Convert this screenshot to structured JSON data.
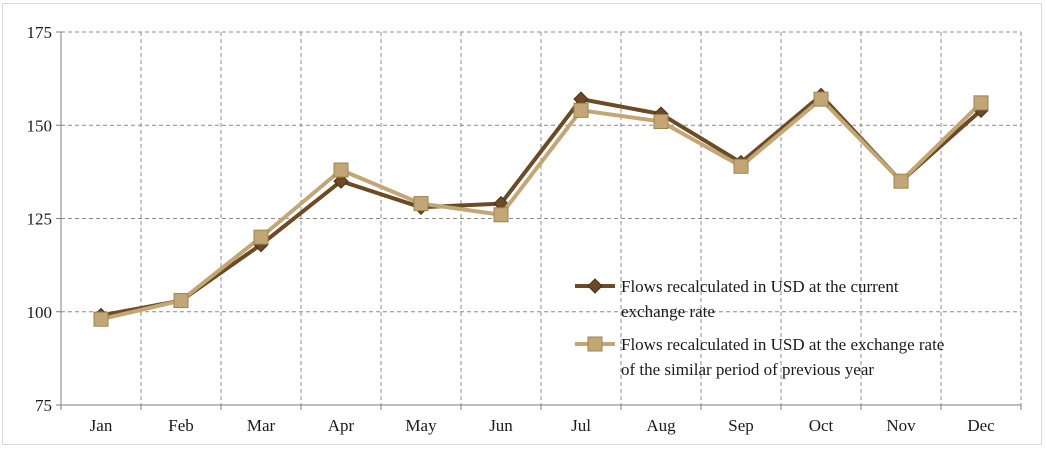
{
  "chart_data": {
    "type": "line",
    "title": "",
    "xlabel": "",
    "ylabel": "",
    "categories": [
      "Jan",
      "Feb",
      "Mar",
      "Apr",
      "May",
      "Jun",
      "Jul",
      "Aug",
      "Sep",
      "Oct",
      "Nov",
      "Dec"
    ],
    "ylim": [
      75,
      175
    ],
    "yticks": [
      75,
      100,
      125,
      150,
      175
    ],
    "grid": true,
    "legend_position": "bottom-right",
    "series": [
      {
        "name": "Flows recalculated in USD at the current exchange rate",
        "legend_lines": [
          "Flows recalculated in USD at the current",
          "exchange rate"
        ],
        "marker": "diamond",
        "color": "#6b4a25",
        "values": [
          99,
          103,
          118,
          135,
          128,
          129,
          157,
          153,
          140,
          158,
          135,
          154
        ]
      },
      {
        "name": "Flows recalculated in USD at the exchange rate of the similar period of previous year",
        "legend_lines": [
          "Flows recalculated in USD at the exchange rate",
          "of the similar period of previous year"
        ],
        "marker": "square",
        "color": "#c2a675",
        "values": [
          98,
          103,
          120,
          138,
          129,
          126,
          154,
          151,
          139,
          157,
          135,
          156
        ]
      }
    ]
  }
}
